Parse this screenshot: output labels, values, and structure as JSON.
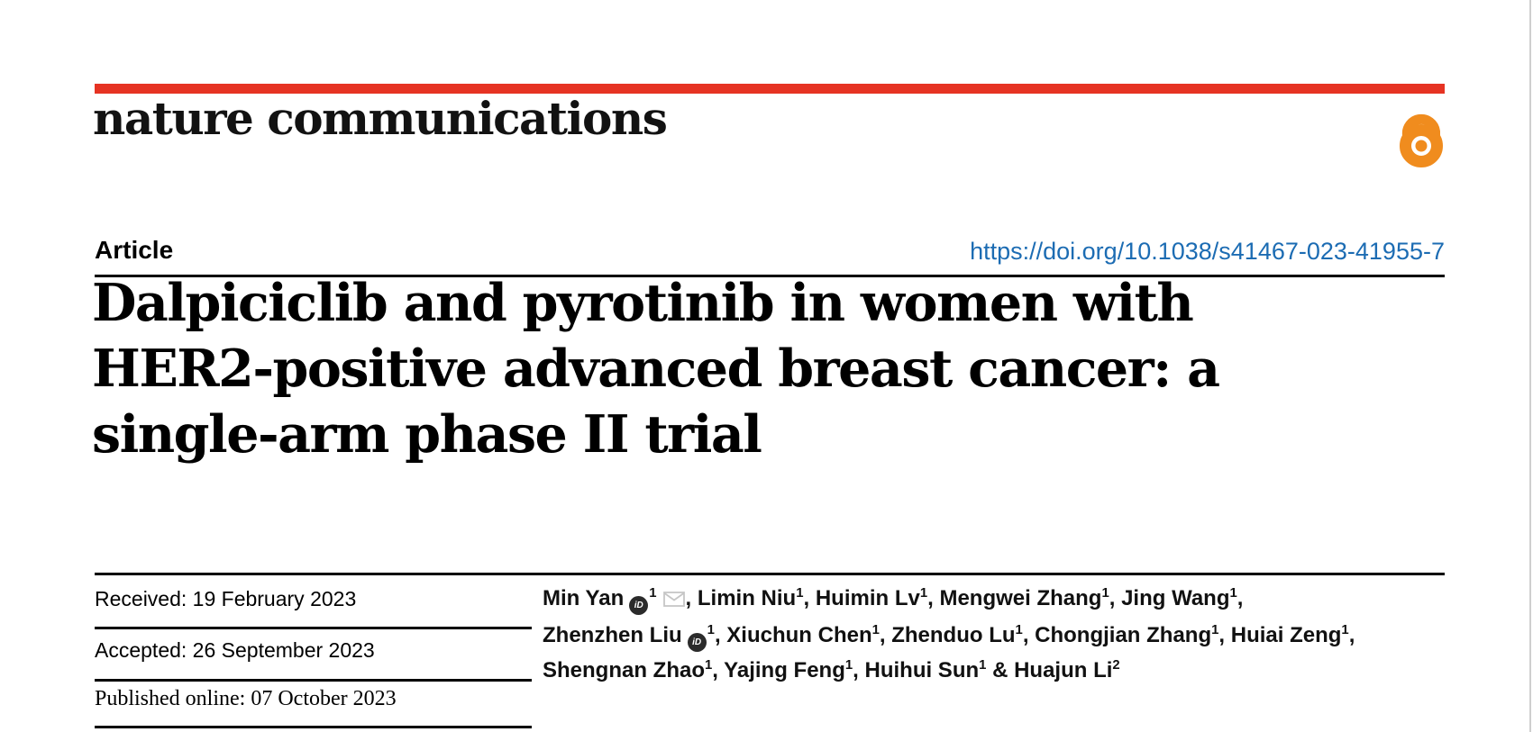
{
  "page": {
    "background": "#ffffff",
    "right_divider_color": "#cfcfcf"
  },
  "brand": {
    "journal_name": "nature communications",
    "accent_red": "#e63323",
    "open_access_color": "#f08c1e",
    "open_access_icon": "open-access-lock-icon"
  },
  "article_meta": {
    "kind_label": "Article",
    "doi_url": "https://doi.org/10.1038/s41467-023-41955-7",
    "doi_color": "#1c6cb3"
  },
  "title": {
    "lines": [
      "Dalpiciclib and pyrotinib in women with",
      "HER2-positive advanced breast cancer: a",
      "single-arm phase II trial"
    ]
  },
  "history": {
    "rows": [
      {
        "text": "Received: 19 February 2023"
      },
      {
        "text": "Accepted: 26 September 2023"
      },
      {
        "text": "Published online: 07 October 2023"
      }
    ]
  },
  "authors": {
    "orcid_icon_label": "iD",
    "lines": [
      [
        {
          "t": "Min Yan"
        },
        {
          "icon": "orcid"
        },
        {
          "sup": "1"
        },
        {
          "icon": "envelope"
        },
        {
          "t": ", Limin Niu"
        },
        {
          "sup": "1"
        },
        {
          "t": ", Huimin Lv"
        },
        {
          "sup": "1"
        },
        {
          "t": ", Mengwei Zhang"
        },
        {
          "sup": "1"
        },
        {
          "t": ", Jing Wang"
        },
        {
          "sup": "1"
        },
        {
          "t": ","
        }
      ],
      [
        {
          "t": "Zhenzhen Liu"
        },
        {
          "icon": "orcid"
        },
        {
          "sup": "1"
        },
        {
          "t": ", Xiuchun Chen"
        },
        {
          "sup": "1"
        },
        {
          "t": ", Zhenduo Lu"
        },
        {
          "sup": "1"
        },
        {
          "t": ", Chongjian Zhang"
        },
        {
          "sup": "1"
        },
        {
          "t": ", Huiai Zeng"
        },
        {
          "sup": "1"
        },
        {
          "t": ","
        }
      ],
      [
        {
          "t": "Shengnan Zhao"
        },
        {
          "sup": "1"
        },
        {
          "t": ", Yajing Feng"
        },
        {
          "sup": "1"
        },
        {
          "t": ", Huihui Sun"
        },
        {
          "sup": "1"
        },
        {
          "t": " & Huajun Li"
        },
        {
          "sup": "2"
        }
      ]
    ]
  }
}
